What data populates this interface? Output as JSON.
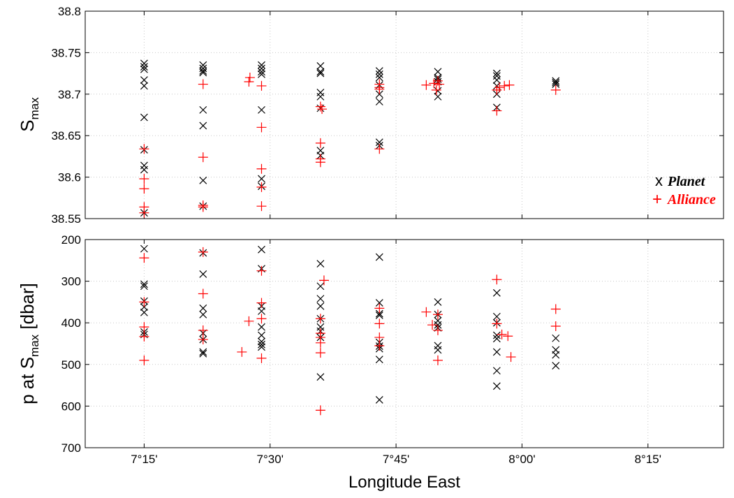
{
  "chart_data": [
    {
      "type": "scatter",
      "ylabel": "S",
      "ylabel_sub": "max",
      "ylim": [
        38.55,
        38.8
      ],
      "yticks": [
        "38.55",
        "38.6",
        "38.65",
        "38.7",
        "38.75",
        "38.8"
      ],
      "xlim": [
        7.133,
        8.4
      ],
      "grid": true,
      "legend_position": "right",
      "series": [
        {
          "name": "Planet",
          "marker": "x",
          "color": "#000000",
          "points": [
            [
              7.25,
              38.737
            ],
            [
              7.25,
              38.733
            ],
            [
              7.25,
              38.73
            ],
            [
              7.25,
              38.717
            ],
            [
              7.25,
              38.71
            ],
            [
              7.25,
              38.672
            ],
            [
              7.25,
              38.633
            ],
            [
              7.25,
              38.614
            ],
            [
              7.25,
              38.609
            ],
            [
              7.25,
              38.557
            ],
            [
              7.367,
              38.735
            ],
            [
              7.367,
              38.731
            ],
            [
              7.367,
              38.728
            ],
            [
              7.367,
              38.726
            ],
            [
              7.367,
              38.681
            ],
            [
              7.367,
              38.662
            ],
            [
              7.367,
              38.596
            ],
            [
              7.367,
              38.565
            ],
            [
              7.483,
              38.735
            ],
            [
              7.483,
              38.731
            ],
            [
              7.483,
              38.727
            ],
            [
              7.483,
              38.724
            ],
            [
              7.483,
              38.681
            ],
            [
              7.483,
              38.598
            ],
            [
              7.483,
              38.589
            ],
            [
              7.6,
              38.734
            ],
            [
              7.6,
              38.727
            ],
            [
              7.6,
              38.725
            ],
            [
              7.6,
              38.702
            ],
            [
              7.6,
              38.697
            ],
            [
              7.6,
              38.683
            ],
            [
              7.6,
              38.632
            ],
            [
              7.6,
              38.626
            ],
            [
              7.717,
              38.728
            ],
            [
              7.717,
              38.724
            ],
            [
              7.717,
              38.72
            ],
            [
              7.717,
              38.711
            ],
            [
              7.717,
              38.7
            ],
            [
              7.717,
              38.691
            ],
            [
              7.717,
              38.642
            ],
            [
              7.717,
              38.638
            ],
            [
              7.833,
              38.727
            ],
            [
              7.833,
              38.72
            ],
            [
              7.833,
              38.718
            ],
            [
              7.833,
              38.715
            ],
            [
              7.833,
              38.704
            ],
            [
              7.833,
              38.697
            ],
            [
              7.95,
              38.725
            ],
            [
              7.95,
              38.722
            ],
            [
              7.95,
              38.717
            ],
            [
              7.95,
              38.71
            ],
            [
              7.95,
              38.7
            ],
            [
              7.95,
              38.684
            ],
            [
              8.067,
              38.716
            ],
            [
              8.067,
              38.714
            ],
            [
              8.067,
              38.712
            ]
          ]
        },
        {
          "name": "Alliance",
          "marker": "+",
          "color": "#ff0000",
          "points": [
            [
              7.25,
              38.634
            ],
            [
              7.25,
              38.598
            ],
            [
              7.25,
              38.586
            ],
            [
              7.25,
              38.564
            ],
            [
              7.25,
              38.557
            ],
            [
              7.367,
              38.712
            ],
            [
              7.367,
              38.624
            ],
            [
              7.367,
              38.566
            ],
            [
              7.367,
              38.564
            ],
            [
              7.46,
              38.72
            ],
            [
              7.458,
              38.715
            ],
            [
              7.483,
              38.71
            ],
            [
              7.483,
              38.66
            ],
            [
              7.483,
              38.61
            ],
            [
              7.483,
              38.588
            ],
            [
              7.483,
              38.565
            ],
            [
              7.6,
              38.685
            ],
            [
              7.603,
              38.682
            ],
            [
              7.6,
              38.641
            ],
            [
              7.6,
              38.622
            ],
            [
              7.6,
              38.618
            ],
            [
              7.717,
              38.712
            ],
            [
              7.717,
              38.708
            ],
            [
              7.717,
              38.706
            ],
            [
              7.717,
              38.634
            ],
            [
              7.81,
              38.711
            ],
            [
              7.825,
              38.713
            ],
            [
              7.833,
              38.716
            ],
            [
              7.836,
              38.712
            ],
            [
              7.83,
              38.705
            ],
            [
              7.95,
              38.705
            ],
            [
              7.955,
              38.708
            ],
            [
              7.965,
              38.71
            ],
            [
              7.975,
              38.711
            ],
            [
              7.95,
              38.68
            ],
            [
              8.067,
              38.705
            ]
          ]
        }
      ]
    },
    {
      "type": "scatter",
      "ylabel": "p at S",
      "ylabel_sub": "max",
      "ylabel_suffix": " [dbar]",
      "ylim": [
        200,
        700
      ],
      "y_reversed": true,
      "yticks": [
        "200",
        "300",
        "400",
        "500",
        "600",
        "700"
      ],
      "xlim": [
        7.133,
        8.4
      ],
      "xticks": [
        "7°15'",
        "7°30'",
        "7°45'",
        "8°00'",
        "8°15'"
      ],
      "xtick_values": [
        7.25,
        7.5,
        7.75,
        8.0,
        8.25
      ],
      "xlabel": "Longitude East",
      "grid": true,
      "series": [
        {
          "name": "Planet",
          "marker": "x",
          "color": "#000000",
          "points": [
            [
              7.25,
              222
            ],
            [
              7.25,
              307
            ],
            [
              7.25,
              312
            ],
            [
              7.25,
              348
            ],
            [
              7.25,
              362
            ],
            [
              7.25,
              375
            ],
            [
              7.25,
              422
            ],
            [
              7.25,
              428
            ],
            [
              7.367,
              232
            ],
            [
              7.367,
              283
            ],
            [
              7.367,
              365
            ],
            [
              7.367,
              380
            ],
            [
              7.367,
              425
            ],
            [
              7.367,
              440
            ],
            [
              7.367,
              470
            ],
            [
              7.367,
              474
            ],
            [
              7.483,
              224
            ],
            [
              7.483,
              270
            ],
            [
              7.483,
              360
            ],
            [
              7.483,
              372
            ],
            [
              7.483,
              410
            ],
            [
              7.483,
              430
            ],
            [
              7.483,
              445
            ],
            [
              7.483,
              452
            ],
            [
              7.483,
              458
            ],
            [
              7.6,
              258
            ],
            [
              7.6,
              312
            ],
            [
              7.6,
              342
            ],
            [
              7.6,
              360
            ],
            [
              7.6,
              390
            ],
            [
              7.6,
              410
            ],
            [
              7.6,
              420
            ],
            [
              7.6,
              435
            ],
            [
              7.6,
              530
            ],
            [
              7.717,
              242
            ],
            [
              7.717,
              352
            ],
            [
              7.717,
              378
            ],
            [
              7.717,
              382
            ],
            [
              7.717,
              447
            ],
            [
              7.717,
              456
            ],
            [
              7.717,
              462
            ],
            [
              7.717,
              488
            ],
            [
              7.717,
              585
            ],
            [
              7.833,
              350
            ],
            [
              7.833,
              380
            ],
            [
              7.833,
              395
            ],
            [
              7.833,
              405
            ],
            [
              7.833,
              412
            ],
            [
              7.833,
              455
            ],
            [
              7.833,
              465
            ],
            [
              7.95,
              328
            ],
            [
              7.95,
              385
            ],
            [
              7.95,
              400
            ],
            [
              7.95,
              430
            ],
            [
              7.95,
              438
            ],
            [
              7.95,
              470
            ],
            [
              7.95,
              515
            ],
            [
              7.95,
              552
            ],
            [
              8.067,
              437
            ],
            [
              8.067,
              465
            ],
            [
              8.067,
              477
            ],
            [
              8.067,
              503
            ]
          ]
        },
        {
          "name": "Alliance",
          "marker": "+",
          "color": "#ff0000",
          "points": [
            [
              7.25,
              244
            ],
            [
              7.25,
              350
            ],
            [
              7.25,
              410
            ],
            [
              7.25,
              433
            ],
            [
              7.25,
              490
            ],
            [
              7.367,
              230
            ],
            [
              7.367,
              330
            ],
            [
              7.367,
              418
            ],
            [
              7.367,
              440
            ],
            [
              7.458,
              396
            ],
            [
              7.444,
              470
            ],
            [
              7.483,
              275
            ],
            [
              7.483,
              352
            ],
            [
              7.483,
              390
            ],
            [
              7.483,
              485
            ],
            [
              7.607,
              298
            ],
            [
              7.6,
              390
            ],
            [
              7.6,
              425
            ],
            [
              7.6,
              435
            ],
            [
              7.6,
              448
            ],
            [
              7.6,
              472
            ],
            [
              7.6,
              610
            ],
            [
              7.717,
              365
            ],
            [
              7.717,
              402
            ],
            [
              7.717,
              435
            ],
            [
              7.717,
              455
            ],
            [
              7.81,
              374
            ],
            [
              7.822,
              405
            ],
            [
              7.833,
              380
            ],
            [
              7.833,
              418
            ],
            [
              7.833,
              490
            ],
            [
              7.95,
              296
            ],
            [
              7.95,
              402
            ],
            [
              7.96,
              428
            ],
            [
              7.972,
              432
            ],
            [
              7.978,
              482
            ],
            [
              8.067,
              367
            ],
            [
              8.067,
              408
            ]
          ]
        }
      ]
    }
  ]
}
